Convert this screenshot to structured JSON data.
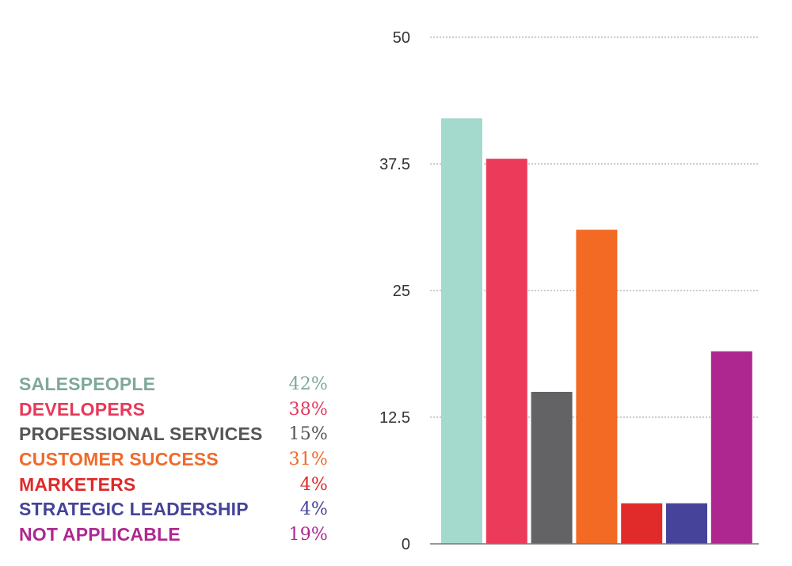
{
  "chart_data": {
    "type": "bar",
    "title": "",
    "xlabel": "",
    "ylabel": "",
    "ylim": [
      0,
      50
    ],
    "yticks": [
      0,
      12.5,
      25,
      37.5,
      50
    ],
    "yticklabels": [
      "0",
      "12.5",
      "25",
      "37.5",
      "50"
    ],
    "grid": true,
    "legend_placement": "left",
    "categories": [
      "SALESPEOPLE",
      "DEVELOPERS",
      "PROFESSIONAL SERVICES",
      "CUSTOMER SUCCESS",
      "MARKETERS",
      "STRATEGIC LEADERSHIP",
      "NOT APPLICABLE"
    ],
    "values": [
      42,
      38,
      15,
      31,
      4,
      4,
      19
    ],
    "value_labels": [
      "42%",
      "38%",
      "15%",
      "31%",
      "4%",
      "4%",
      "19%"
    ],
    "colors": [
      "#a4d9cd",
      "#ec3a5a",
      "#636366",
      "#f26a24",
      "#e12a2a",
      "#45439a",
      "#ae2790"
    ],
    "legend_colors": [
      "#7fa89b",
      "#e8395a",
      "#555558",
      "#f06a2a",
      "#dd2a2a",
      "#45439a",
      "#ae2790"
    ]
  }
}
